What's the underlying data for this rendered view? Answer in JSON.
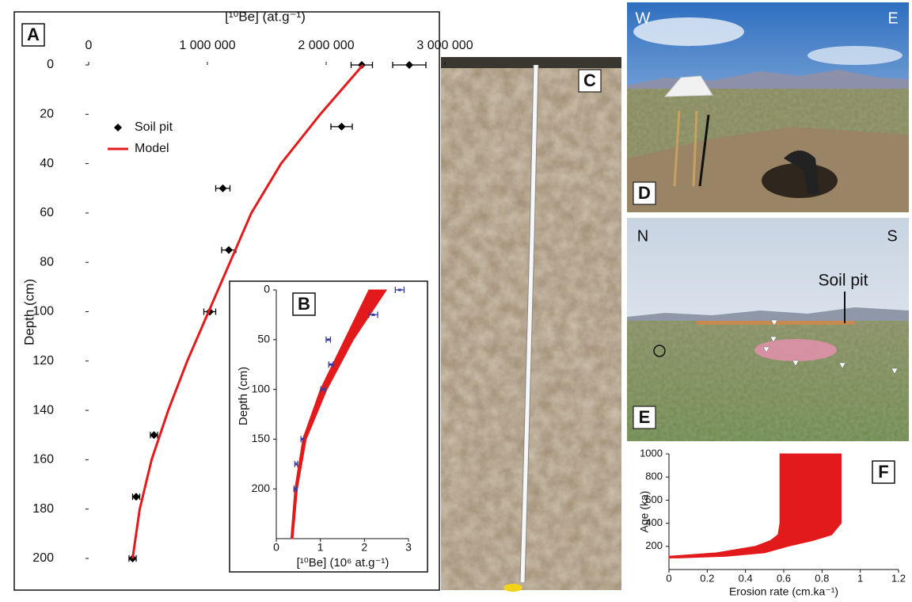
{
  "chart_data": [
    {
      "type": "scatter",
      "panel_label": "A",
      "xlabel": "[¹⁰Be] (at.g⁻¹)",
      "ylabel": "Depth (cm)",
      "xlim": [
        0,
        2950000
      ],
      "xticks": [
        0,
        {
          "value": 1000000,
          "label": "1 000 000"
        },
        {
          "value": 2000000,
          "label": "2 000 000"
        },
        {
          "value": 3000000,
          "label": "3 000 000"
        }
      ],
      "ylim": [
        0,
        200
      ],
      "yticks": [
        0,
        20,
        40,
        60,
        80,
        100,
        120,
        140,
        160,
        180,
        200
      ],
      "y_inverted": true,
      "x_axis_position": "top",
      "legend": "upper left",
      "series": [
        {
          "name": "Soil pit",
          "color": "#000000",
          "marker": "diamond",
          "x": [
            2300000,
            2700000,
            2130000,
            1130000,
            1180000,
            1020000,
            550000,
            400000,
            370000
          ],
          "x_err": [
            90000,
            140000,
            90000,
            60000,
            60000,
            50000,
            30000,
            30000,
            30000
          ],
          "y": [
            0,
            0,
            25,
            50,
            75,
            100,
            150,
            175,
            200
          ]
        },
        {
          "name": "Model",
          "color": "#e31a1c",
          "marker": "line",
          "x": [
            2310000,
            1950000,
            1620000,
            1370000,
            1190000,
            1010000,
            830000,
            670000,
            530000,
            430000,
            370000
          ],
          "y": [
            0,
            20,
            40,
            60,
            80,
            100,
            120,
            140,
            160,
            180,
            200
          ]
        }
      ]
    },
    {
      "type": "scatter",
      "panel_label": "B",
      "xlabel": "[¹⁰Be] (10⁶ at.g⁻¹)",
      "ylabel": "Depth (cm)",
      "xlim": [
        0,
        3
      ],
      "xticks": [
        0,
        1,
        2,
        3
      ],
      "ylim": [
        0,
        250
      ],
      "yticks": [
        0,
        50,
        100,
        150,
        200
      ],
      "y_inverted": true,
      "x_axis_position": "bottom",
      "series": [
        {
          "color": "#e31a1c",
          "marker": "band",
          "lower": [
            2.1,
            1.55,
            1.0,
            0.6,
            0.42,
            0.33
          ],
          "upper": [
            2.5,
            1.75,
            1.15,
            0.68,
            0.48,
            0.38
          ],
          "y": [
            0,
            50,
            100,
            150,
            200,
            250
          ]
        },
        {
          "color": "#3a3aa0",
          "marker": "dash",
          "x": [
            2.8,
            2.2,
            1.18,
            1.24,
            1.06,
            0.59,
            0.45,
            0.43
          ],
          "x_err": [
            0.1,
            0.1,
            0.05,
            0.05,
            0.05,
            0.03,
            0.03,
            0.03
          ],
          "y": [
            0,
            25,
            50,
            75,
            100,
            150,
            175,
            200
          ]
        }
      ]
    },
    {
      "type": "scatter",
      "panel_label": "F",
      "xlabel": "Erosion rate (cm.ka⁻¹)",
      "ylabel": "Age (ka)",
      "xlim": [
        0,
        1.2
      ],
      "xticks": [
        0,
        0.2,
        0.4,
        0.6,
        0.8,
        1,
        1.2
      ],
      "ylim": [
        0,
        1000
      ],
      "yticks": [
        200,
        400,
        600,
        800,
        1000
      ],
      "y_inverted": false,
      "x_axis_position": "bottom",
      "series": [
        {
          "color": "#e31a1c",
          "marker": "band",
          "lower": [
            0,
            0,
            0.25,
            0.45,
            0.53,
            0.57,
            0.58,
            0.58,
            0.58,
            0.58
          ],
          "upper": [
            0.05,
            0.3,
            0.5,
            0.62,
            0.75,
            0.85,
            0.9,
            0.9,
            0.9,
            0.9
          ],
          "y": [
            100,
            115,
            145,
            200,
            250,
            300,
            400,
            600,
            800,
            1000
          ]
        }
      ]
    }
  ],
  "photos": [
    {
      "label": "C"
    },
    {
      "label": "D",
      "left": "W",
      "right": "E"
    },
    {
      "label": "E",
      "left": "N",
      "right": "S",
      "annotation": "Soil pit"
    }
  ]
}
